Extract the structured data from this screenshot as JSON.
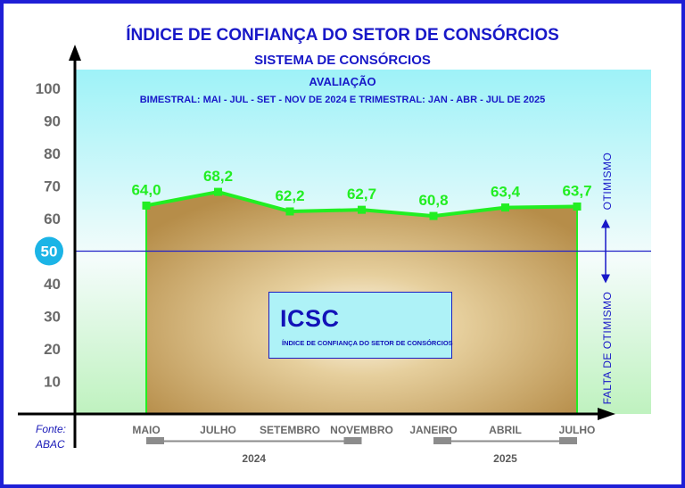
{
  "header": {
    "title": "ÍNDICE DE CONFIANÇA DO SETOR DE CONSÓRCIOS",
    "subtitle": "SISTEMA DE CONSÓRCIOS",
    "evaluation": "AVALIAÇÃO",
    "period": "BIMESTRAL: MAI - JUL - SET - NOV DE 2024 E TRIMESTRAL: JAN - ABR - JUL DE 2025"
  },
  "legend_box": {
    "title": "ICSC",
    "subtitle": "ÍNDICE DE CONFIANÇA DO SETOR DE CONSÓRCIOS"
  },
  "side_labels": {
    "upper": "OTIMISMO",
    "lower": "FALTA DE OTIMISMO"
  },
  "source": {
    "line1": "Fonte:",
    "line2": "ABAC"
  },
  "colors": {
    "frame": "#1f1fd6",
    "line": "#22ee22",
    "value_labels": "#22ee22",
    "text": "#1818c8",
    "area": "#c9a05e",
    "threshold_circle": "#1bb4e6"
  },
  "chart_data": {
    "type": "area",
    "categories": [
      "MAIO",
      "JULHO",
      "SETEMBRO",
      "NOVEMBRO",
      "JANEIRO",
      "ABRIL",
      "JULHO"
    ],
    "values": [
      64.0,
      68.2,
      62.2,
      62.7,
      60.8,
      63.4,
      63.7
    ],
    "value_labels": [
      "64,0",
      "68,2",
      "62,2",
      "62,7",
      "60,8",
      "63,4",
      "63,7"
    ],
    "ylim": [
      0,
      100
    ],
    "yticks": [
      10,
      20,
      30,
      40,
      50,
      60,
      70,
      80,
      90,
      100
    ],
    "threshold": 50,
    "year_groups": [
      {
        "label": "2024",
        "from": 0,
        "to": 3
      },
      {
        "label": "2025",
        "from": 4,
        "to": 6
      }
    ],
    "grid": false
  }
}
